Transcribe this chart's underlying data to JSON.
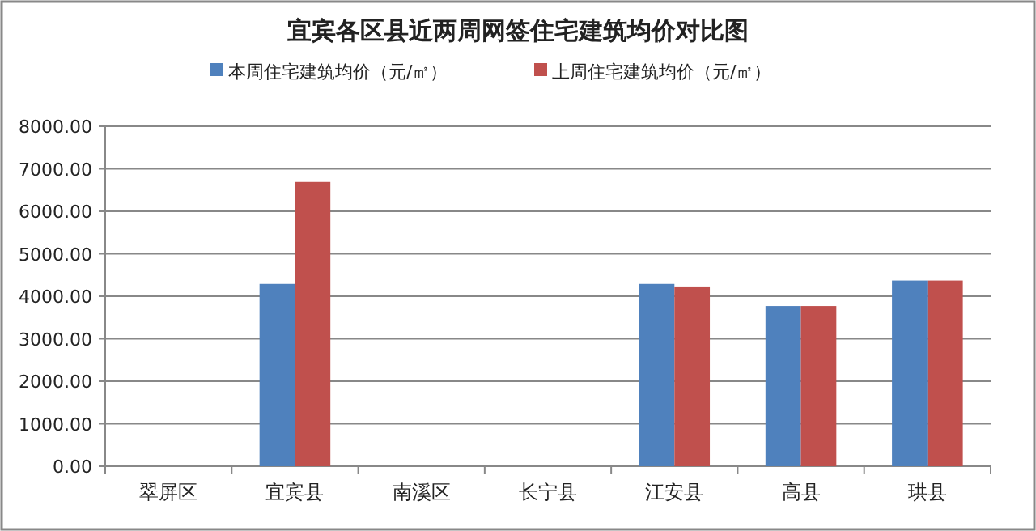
{
  "chart_data": {
    "type": "bar",
    "title": "宜宾各区县近两周网签住宅建筑均价对比图",
    "categories": [
      "翠屏区",
      "宜宾县",
      "南溪区",
      "长宁县",
      "江安县",
      "高县",
      "珙县"
    ],
    "series": [
      {
        "name": "本周住宅建筑均价（元/㎡）",
        "color": "#4f81bd",
        "values": [
          null,
          4290,
          null,
          null,
          4290,
          3770,
          4370
        ]
      },
      {
        "name": "上周住宅建筑均价（元/㎡）",
        "color": "#c0504d",
        "values": [
          null,
          6690,
          null,
          null,
          4230,
          3770,
          4370
        ]
      }
    ],
    "ylim": [
      0,
      8000
    ],
    "yticks": [
      {
        "value": 0,
        "label": "0.00"
      },
      {
        "value": 1000,
        "label": "1000.00"
      },
      {
        "value": 2000,
        "label": "2000.00"
      },
      {
        "value": 3000,
        "label": "3000.00"
      },
      {
        "value": 4000,
        "label": "4000.00"
      },
      {
        "value": 5000,
        "label": "5000.00"
      },
      {
        "value": 6000,
        "label": "6000.00"
      },
      {
        "value": 7000,
        "label": "7000.00"
      },
      {
        "value": 8000,
        "label": "8000.00"
      }
    ],
    "grid": "y",
    "legend": "top"
  }
}
